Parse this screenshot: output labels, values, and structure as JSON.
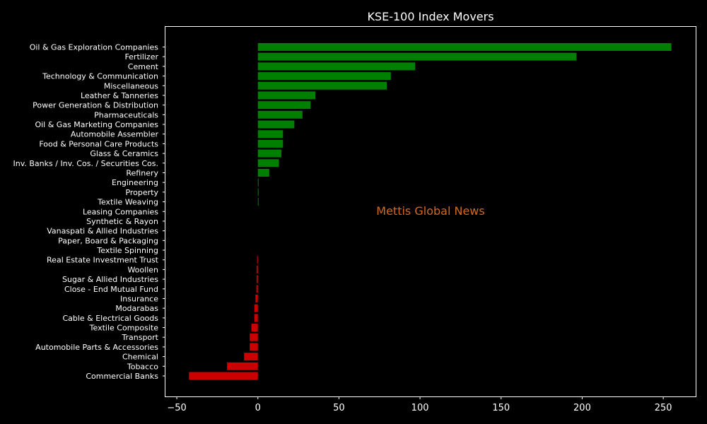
{
  "chart_data": {
    "type": "bar",
    "orientation": "horizontal",
    "title": "KSE-100 Index Movers",
    "watermark": "Mettis Global News",
    "xlabel": "",
    "ylabel": "",
    "xlim": [
      -57,
      270
    ],
    "xticks": [
      -50,
      0,
      50,
      100,
      150,
      200,
      250
    ],
    "grid": false,
    "legend": "none",
    "colors": {
      "positive": "#008000",
      "negative": "#cc0000",
      "background": "#000000",
      "text": "#ffffff",
      "watermark": "#d2691e"
    },
    "categories": [
      "Oil & Gas Exploration Companies",
      "Fertilizer",
      "Cement",
      "Technology & Communication",
      "Miscellaneous",
      "Leather & Tanneries",
      "Power Generation & Distribution",
      "Pharmaceuticals",
      "Oil & Gas Marketing Companies",
      "Automobile Assembler",
      "Food & Personal Care Products",
      "Glass & Ceramics",
      "Inv. Banks / Inv. Cos. / Securities Cos.",
      "Refinery",
      "Engineering",
      "Property",
      "Textile Weaving",
      "Leasing Companies",
      "Synthetic & Rayon",
      "Vanaspati & Allied Industries",
      "Paper, Board & Packaging",
      "Textile Spinning",
      "Real Estate Investment Trust",
      "Woollen",
      "Sugar & Allied Industries",
      "Close - End Mutual Fund",
      "Insurance",
      "Modarabas",
      "Cable & Electrical Goods",
      "Textile Composite",
      "Transport",
      "Automobile Parts & Accessories",
      "Chemical",
      "Tobacco",
      "Commercial Banks"
    ],
    "values": [
      255,
      196.5,
      97,
      82,
      79.5,
      35.5,
      32.5,
      27.5,
      22.5,
      15.5,
      15.5,
      14.5,
      13,
      7,
      0.4,
      0.3,
      0.3,
      0,
      0,
      0,
      0,
      0,
      -0.5,
      -0.8,
      -0.8,
      -0.9,
      -1.5,
      -2.2,
      -2.2,
      -4,
      -5,
      -5,
      -8.5,
      -19,
      -42.5
    ]
  }
}
